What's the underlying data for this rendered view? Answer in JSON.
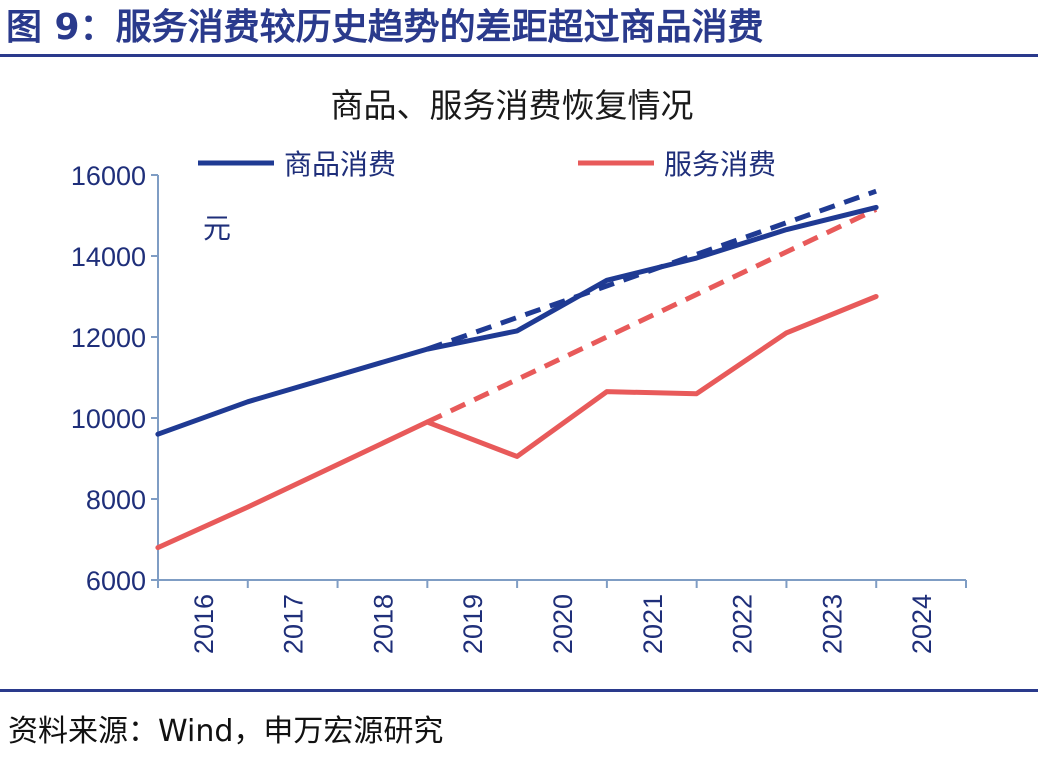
{
  "figure": {
    "title": "图 9：服务消费较历史趋势的差距超过商品消费",
    "source": "资料来源：Wind，申万宏源研究"
  },
  "colors": {
    "goods": "#1f3a93",
    "services": "#e85a5a",
    "axis": "#7f9dc4",
    "text": "#1f2f7a",
    "rule": "#2a3a8c"
  },
  "chart_data": {
    "type": "line",
    "title": "商品、服务消费恢复情况",
    "unit_label": "元",
    "x": [
      "2016",
      "2017",
      "2018",
      "2019",
      "2020",
      "2021",
      "2022",
      "2023",
      "2024"
    ],
    "ylim": [
      6000,
      16000
    ],
    "yticks": [
      6000,
      8000,
      10000,
      12000,
      14000,
      16000
    ],
    "grid": false,
    "legend_position": "top",
    "series": [
      {
        "name": "商品消费",
        "style": "solid",
        "color": "#1f3a93",
        "values": [
          9600,
          10400,
          11050,
          11700,
          12150,
          13400,
          13950,
          14650,
          15200
        ]
      },
      {
        "name": "服务消费",
        "style": "solid",
        "color": "#e85a5a",
        "values": [
          6800,
          7800,
          8850,
          9900,
          9050,
          10650,
          10600,
          12100,
          13000
        ]
      }
    ],
    "trend_lines": [
      {
        "style": "dashed",
        "color": "#1f3a93",
        "x": [
          "2019",
          "2024"
        ],
        "values": [
          11700,
          15600
        ]
      },
      {
        "style": "dashed",
        "color": "#e85a5a",
        "x": [
          "2019",
          "2024"
        ],
        "values": [
          9900,
          15150
        ]
      }
    ]
  }
}
